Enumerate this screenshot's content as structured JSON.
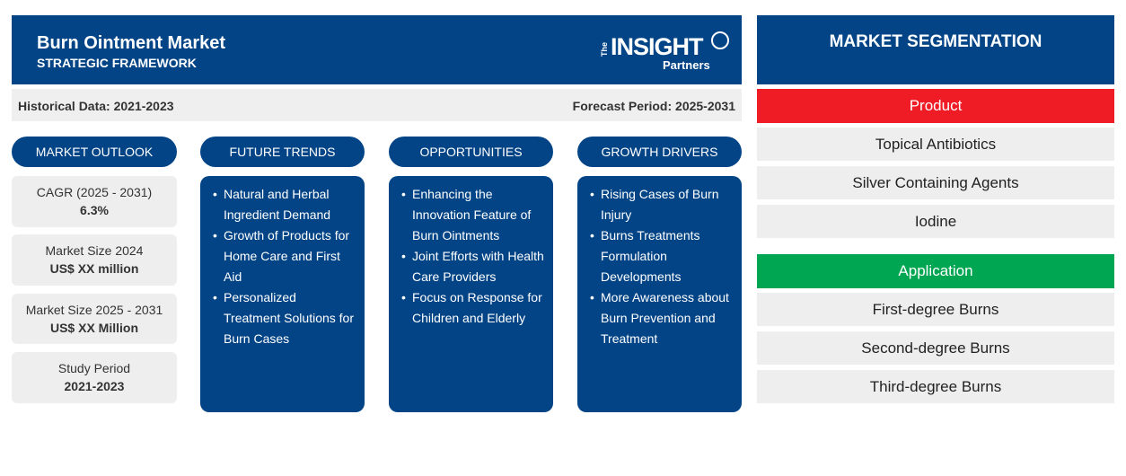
{
  "header": {
    "title": "Burn Ointment Market",
    "subtitle": "STRATEGIC FRAMEWORK",
    "logo": {
      "the": "The",
      "insight": "INSIGHT",
      "partners": "Partners"
    }
  },
  "period": {
    "historical": "Historical Data: 2021-2023",
    "forecast": "Forecast Period: 2025-2031"
  },
  "pills": {
    "outlook": "MARKET OUTLOOK",
    "trends": "FUTURE TRENDS",
    "opportunities": "OPPORTUNITIES",
    "drivers": "GROWTH DRIVERS"
  },
  "stats": [
    {
      "label": "CAGR (2025 - 2031)",
      "value": "6.3%"
    },
    {
      "label": "Market Size 2024",
      "value": "US$ XX million"
    },
    {
      "label": "Market Size 2025 - 2031",
      "value": "US$ XX Million"
    },
    {
      "label": "Study Period",
      "value": "2021-2023"
    }
  ],
  "trends": [
    "Natural and Herbal Ingredient Demand",
    "Growth of Products for Home Care and First Aid",
    "Personalized Treatment Solutions for Burn Cases"
  ],
  "opportunities": [
    "Enhancing the Innovation Feature of Burn Ointments",
    "Joint Efforts with Health Care Providers",
    "Focus on Response for Children and Elderly"
  ],
  "drivers": [
    "Rising Cases of Burn Injury",
    "Burns Treatments Formulation Developments",
    "More Awareness about Burn Prevention and Treatment"
  ],
  "segmentation": {
    "title": "MARKET SEGMENTATION",
    "product": {
      "label": "Product",
      "color": "#ef1c25",
      "items": [
        "Topical Antibiotics",
        "Silver Containing Agents",
        "Iodine"
      ]
    },
    "application": {
      "label": "Application",
      "color": "#00a651",
      "items": [
        "First-degree Burns",
        "Second-degree Burns",
        "Third-degree Burns"
      ]
    }
  },
  "colors": {
    "primary": "#024486",
    "panel": "#eeeeee"
  }
}
